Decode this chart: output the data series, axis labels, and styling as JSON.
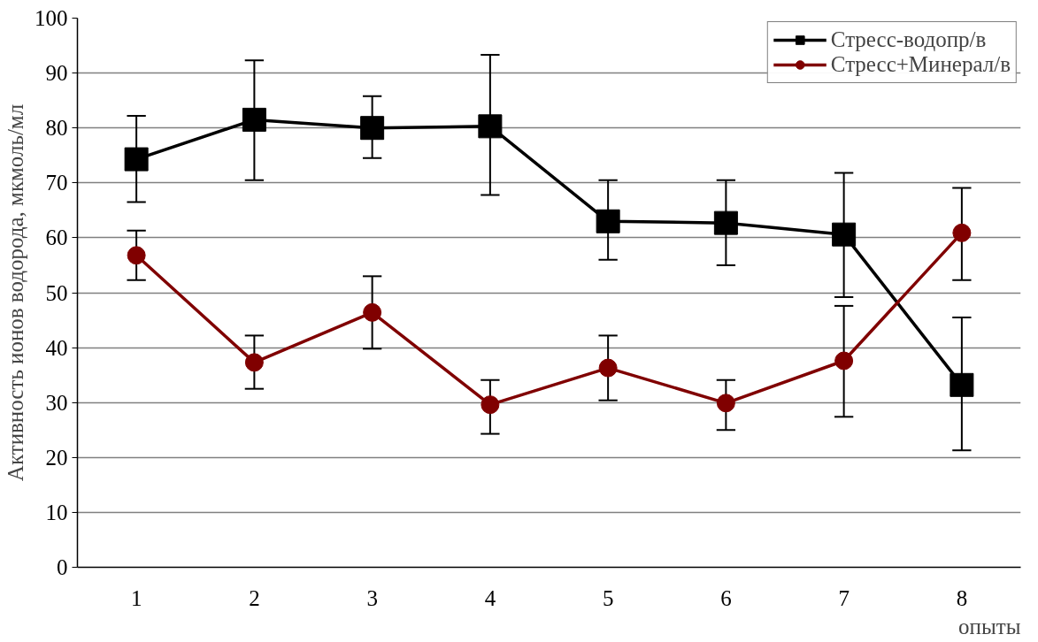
{
  "chart_data": {
    "type": "line",
    "ylabel": "Активность ионов водорода, мкмоль/мл",
    "xlabel": "опыты",
    "categories": [
      "1",
      "2",
      "3",
      "4",
      "5",
      "6",
      "7",
      "8"
    ],
    "series": [
      {
        "name": "Стресс-водопр/в",
        "color": "#000000",
        "marker": "square",
        "values": [
          74.3,
          81.5,
          80.0,
          80.3,
          63.0,
          62.7,
          60.6,
          33.2
        ],
        "errors": [
          [
            66.5,
            82.2
          ],
          [
            70.5,
            92.3
          ],
          [
            74.5,
            85.8
          ],
          [
            67.8,
            93.3
          ],
          [
            56.0,
            70.5
          ],
          [
            55.0,
            70.5
          ],
          [
            49.2,
            71.8
          ],
          [
            21.3,
            45.5
          ]
        ]
      },
      {
        "name": "Стресс+Минерал/в",
        "color": "#800000",
        "marker": "circle",
        "values": [
          56.8,
          37.3,
          46.4,
          29.6,
          36.3,
          29.9,
          37.6,
          60.9
        ],
        "errors": [
          [
            52.3,
            61.3
          ],
          [
            32.5,
            42.2
          ],
          [
            39.8,
            53.0
          ],
          [
            24.3,
            34.1
          ],
          [
            30.4,
            42.2
          ],
          [
            25.0,
            34.1
          ],
          [
            27.4,
            47.6
          ],
          [
            52.3,
            69.1
          ]
        ]
      }
    ],
    "ylim": [
      0,
      100
    ],
    "yticks": [
      0,
      10,
      20,
      30,
      40,
      50,
      60,
      70,
      80,
      90,
      100
    ],
    "grid": "y",
    "legend": "top right",
    "line_style": "solid"
  }
}
